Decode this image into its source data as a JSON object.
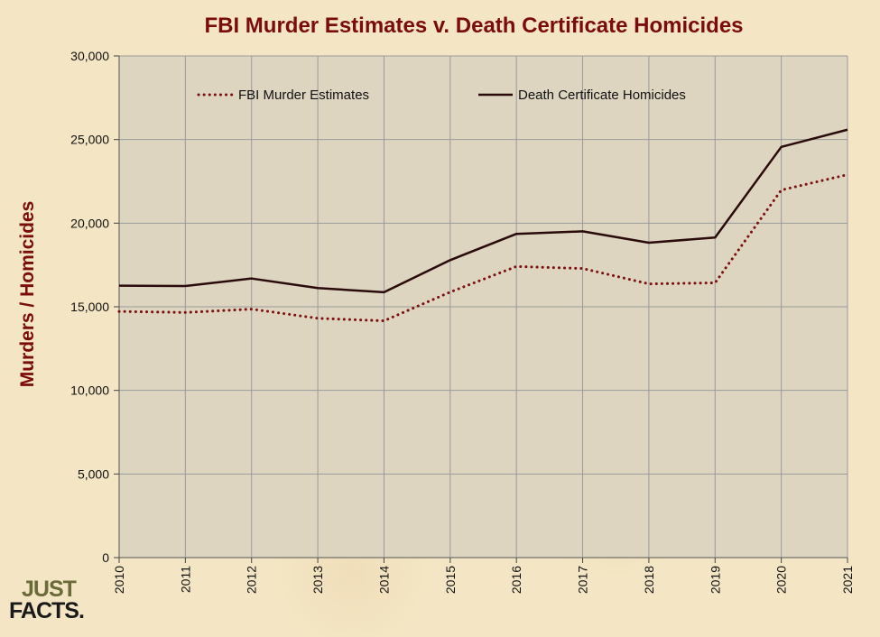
{
  "chart_data": {
    "type": "line",
    "title": "FBI Murder Estimates v. Death Certificate Homicides",
    "ylabel": "Murders / Homicides",
    "xlabel": "",
    "x": [
      "2010",
      "2011",
      "2012",
      "2013",
      "2014",
      "2015",
      "2016",
      "2017",
      "2018",
      "2019",
      "2020",
      "2021"
    ],
    "ylim": [
      0,
      30000
    ],
    "yticks": [
      0,
      5000,
      10000,
      15000,
      20000,
      25000,
      30000
    ],
    "ytick_labels": [
      "0",
      "5,000",
      "10,000",
      "15,000",
      "20,000",
      "25,000",
      "30,000"
    ],
    "grid": true,
    "legend_position": "top",
    "series": [
      {
        "name": "FBI Murder Estimates",
        "style": "dotted",
        "color": "#7a1010",
        "values": [
          14720,
          14660,
          14860,
          14310,
          14160,
          15880,
          17410,
          17290,
          16370,
          16430,
          21980,
          22900
        ]
      },
      {
        "name": "Death Certificate Homicides",
        "style": "solid",
        "color": "#2a0a0a",
        "values": [
          16260,
          16240,
          16690,
          16120,
          15870,
          17790,
          19360,
          19510,
          18830,
          19140,
          24560,
          25590
        ]
      }
    ]
  },
  "logo": {
    "line1": "JUST",
    "line2": "FACTS."
  },
  "colors": {
    "plot_background": "#ddd5c0",
    "gridline": "#9a9a9a",
    "title": "#7a0c0c"
  }
}
